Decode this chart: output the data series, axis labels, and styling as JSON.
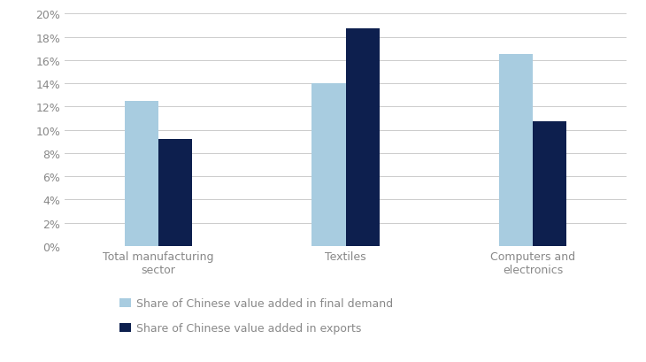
{
  "categories": [
    "Total manufacturing\nsector",
    "Textiles",
    "Computers and\nelectronics"
  ],
  "final_demand": [
    0.125,
    0.14,
    0.165
  ],
  "exports": [
    0.092,
    0.187,
    0.107
  ],
  "color_final_demand": "#a8cce0",
  "color_exports": "#0d1f4e",
  "legend_final_demand": "Share of Chinese value added in final demand",
  "legend_exports": "Share of Chinese value added in exports",
  "ylim": [
    0,
    0.2
  ],
  "ytick_step": 0.02,
  "bar_width": 0.18,
  "group_positions": [
    0.22,
    0.5,
    0.78
  ],
  "background_color": "#ffffff",
  "grid_color": "#cccccc",
  "tick_color": "#888888",
  "label_fontsize": 9,
  "legend_fontsize": 9
}
